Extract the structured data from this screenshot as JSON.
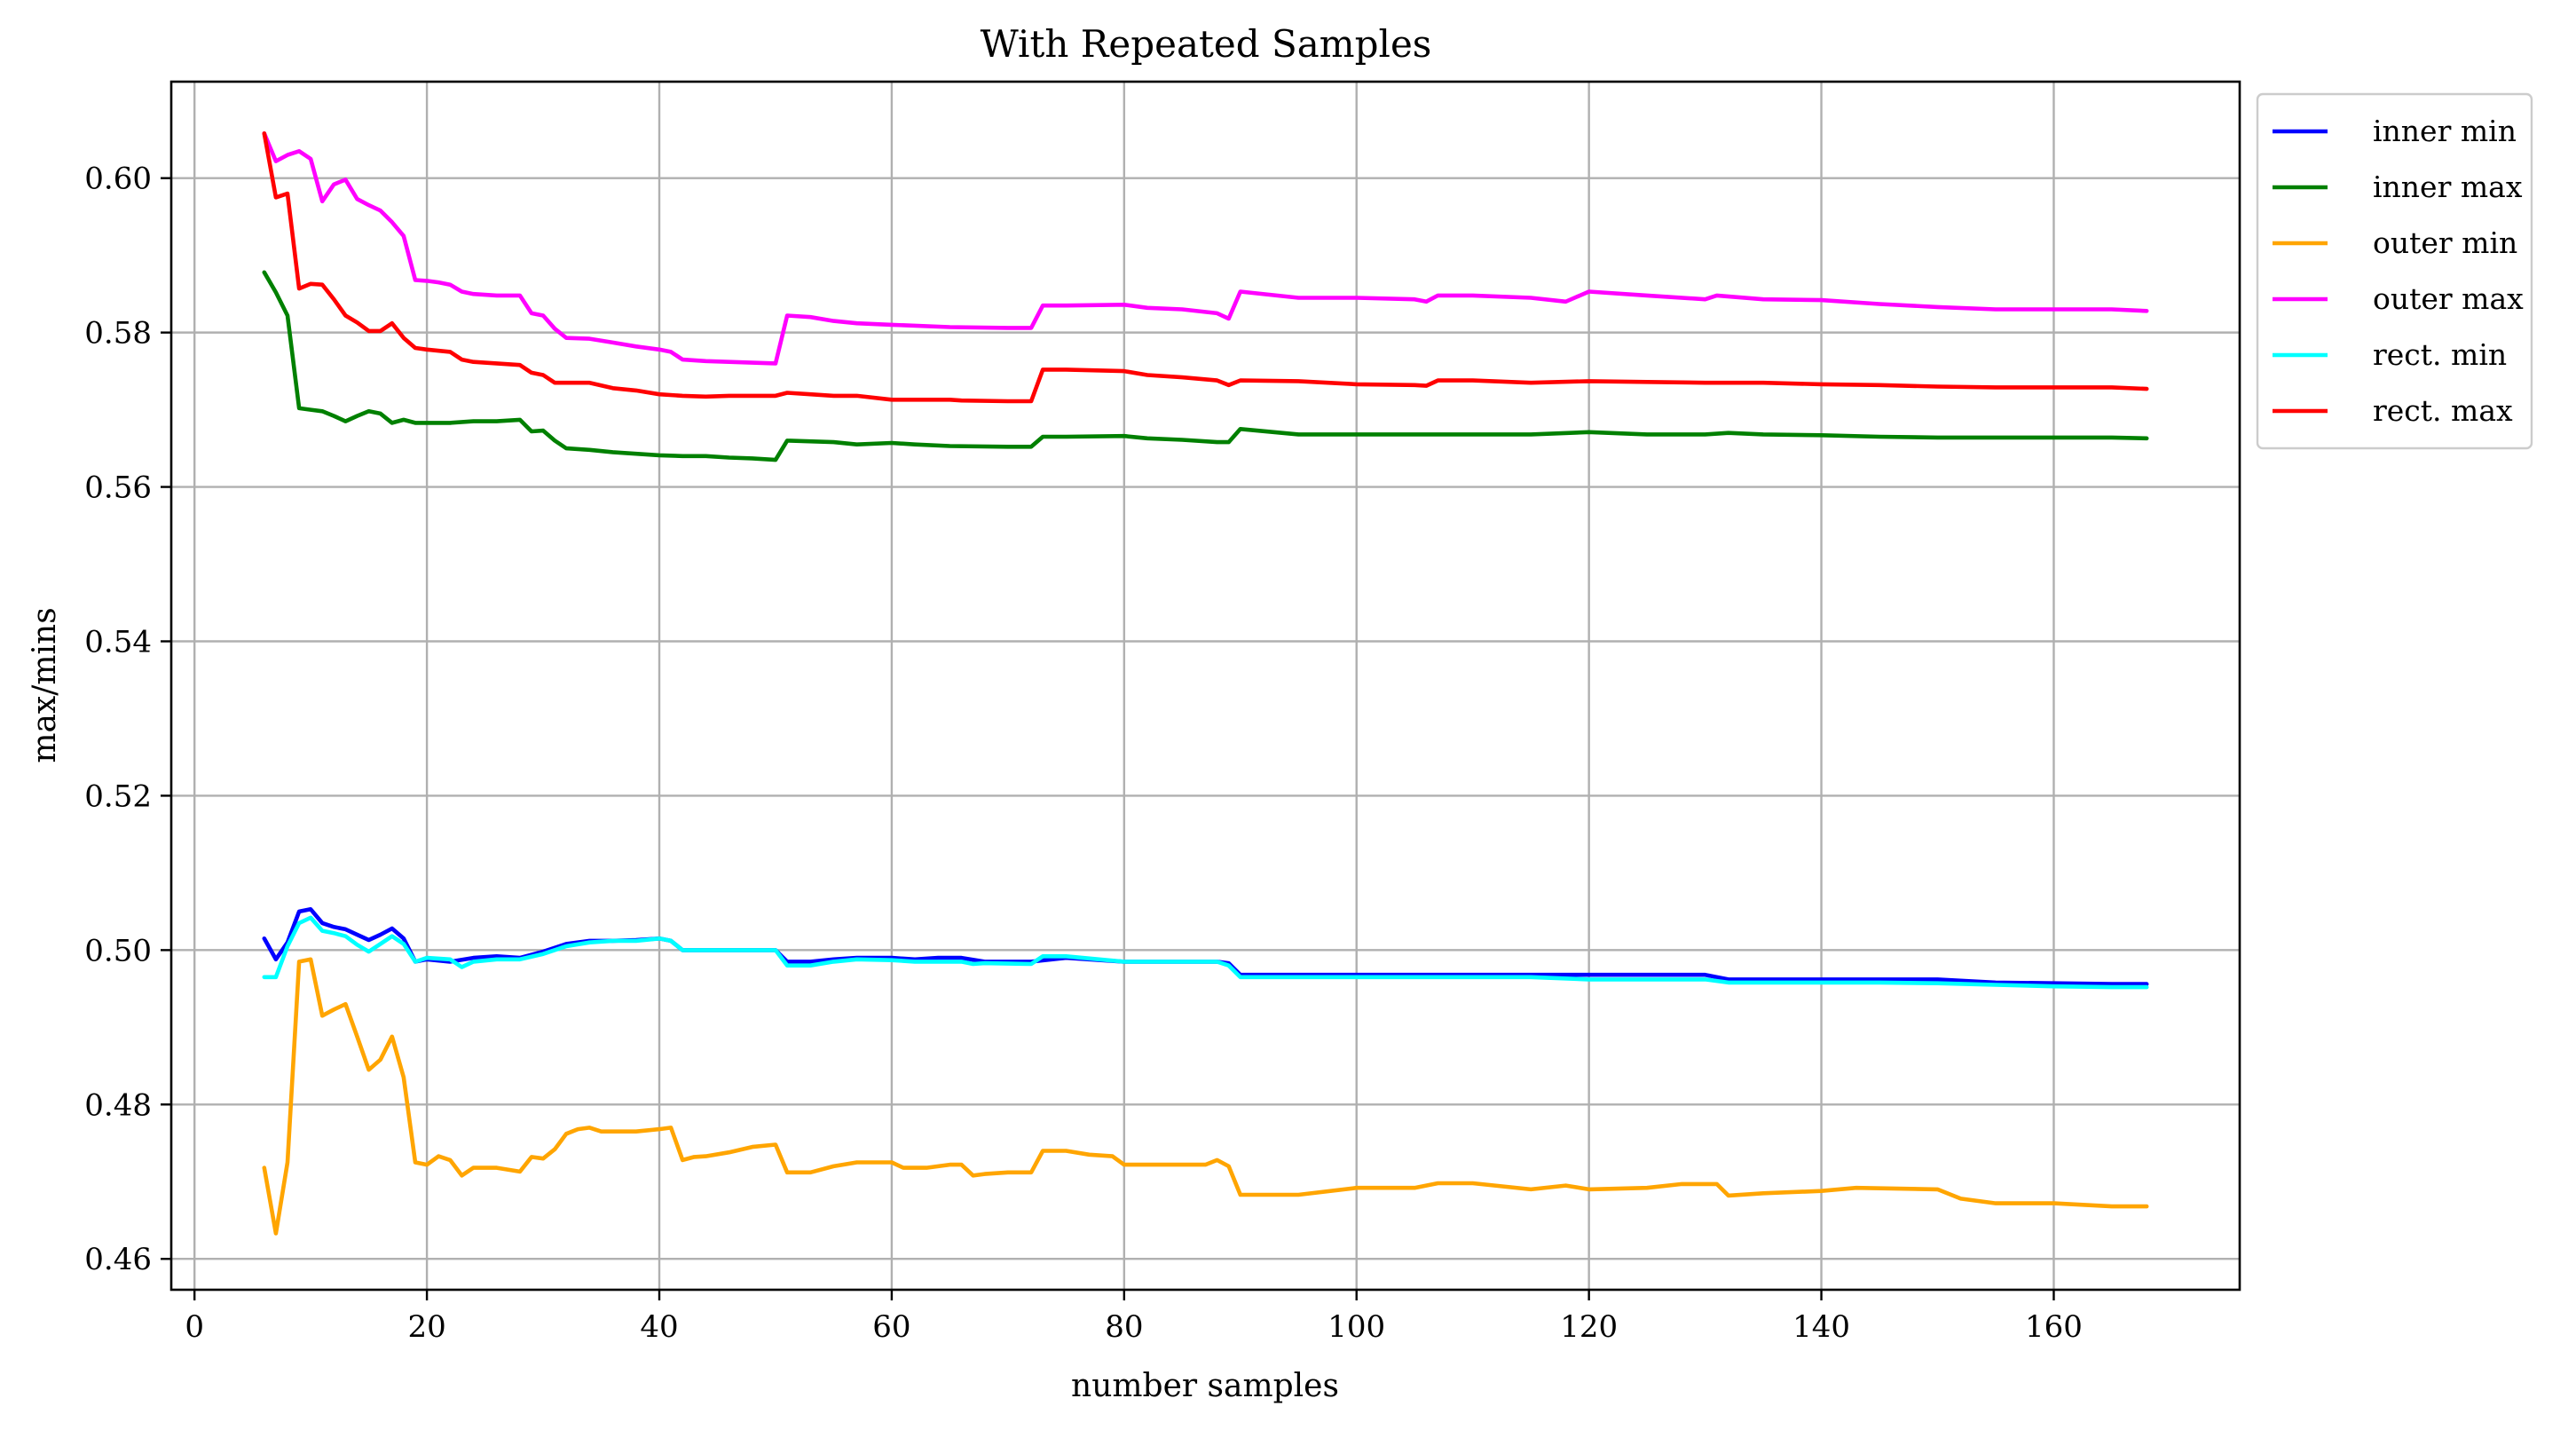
{
  "chart_data": {
    "type": "line",
    "title": "With Repeated Samples",
    "xlabel": "number samples",
    "ylabel": "max/mins",
    "xlim": [
      -2,
      176
    ],
    "ylim": [
      0.456,
      0.6125
    ],
    "xticks": [
      0,
      20,
      40,
      60,
      80,
      100,
      120,
      140,
      160
    ],
    "xtick_labels": [
      "0",
      "20",
      "40",
      "60",
      "80",
      "100",
      "120",
      "140",
      "160"
    ],
    "yticks": [
      0.46,
      0.48,
      0.5,
      0.52,
      0.54,
      0.56,
      0.58,
      0.6
    ],
    "ytick_labels": [
      "0.46",
      "0.48",
      "0.50",
      "0.52",
      "0.54",
      "0.56",
      "0.58",
      "0.60"
    ],
    "grid": true,
    "legend_position": "outside-top-right",
    "series": [
      {
        "name": "inner min",
        "color": "#0000ff",
        "x": [
          6,
          7,
          8,
          9,
          10,
          11,
          12,
          13,
          14,
          15,
          16,
          17,
          18,
          19,
          20,
          22,
          24,
          26,
          28,
          30,
          32,
          34,
          36,
          38,
          40,
          41,
          42,
          44,
          46,
          48,
          50,
          51,
          53,
          55,
          57,
          60,
          62,
          64,
          66,
          68,
          72,
          75,
          80,
          85,
          88,
          89,
          90,
          95,
          100,
          105,
          110,
          115,
          120,
          125,
          130,
          132,
          135,
          140,
          145,
          150,
          155,
          160,
          165,
          168
        ],
        "y": [
          0.5015,
          0.4988,
          0.501,
          0.505,
          0.5053,
          0.5035,
          0.503,
          0.5027,
          0.502,
          0.5013,
          0.502,
          0.5028,
          0.5015,
          0.4985,
          0.4988,
          0.4985,
          0.499,
          0.4992,
          0.499,
          0.4998,
          0.5008,
          0.5012,
          0.5012,
          0.5013,
          0.5015,
          0.5012,
          0.5,
          0.5,
          0.5,
          0.5,
          0.5,
          0.4985,
          0.4985,
          0.4988,
          0.499,
          0.499,
          0.4988,
          0.499,
          0.499,
          0.4985,
          0.4985,
          0.499,
          0.4985,
          0.4985,
          0.4985,
          0.4983,
          0.4968,
          0.4968,
          0.4968,
          0.4968,
          0.4968,
          0.4968,
          0.4968,
          0.4968,
          0.4968,
          0.4962,
          0.4962,
          0.4962,
          0.4962,
          0.4962,
          0.4958,
          0.4957,
          0.4956,
          0.4956
        ]
      },
      {
        "name": "inner max",
        "color": "#008000",
        "x": [
          6,
          7,
          8,
          9,
          10,
          11,
          12,
          13,
          14,
          15,
          16,
          17,
          18,
          19,
          20,
          22,
          24,
          26,
          28,
          29,
          30,
          31,
          32,
          34,
          36,
          38,
          40,
          42,
          44,
          46,
          48,
          50,
          51,
          55,
          57,
          60,
          62,
          65,
          70,
          72,
          73,
          75,
          80,
          82,
          85,
          88,
          89,
          90,
          95,
          100,
          105,
          110,
          115,
          120,
          125,
          130,
          132,
          135,
          140,
          145,
          150,
          155,
          160,
          165,
          168
        ],
        "y": [
          0.5878,
          0.5852,
          0.5822,
          0.5702,
          0.57,
          0.5698,
          0.5692,
          0.5685,
          0.5692,
          0.5698,
          0.5695,
          0.5683,
          0.5687,
          0.5683,
          0.5683,
          0.5683,
          0.5685,
          0.5685,
          0.5687,
          0.5672,
          0.5673,
          0.566,
          0.565,
          0.5648,
          0.5645,
          0.5643,
          0.5641,
          0.564,
          0.564,
          0.5638,
          0.5637,
          0.5635,
          0.566,
          0.5658,
          0.5655,
          0.5657,
          0.5655,
          0.5653,
          0.5652,
          0.5652,
          0.5665,
          0.5665,
          0.5666,
          0.5663,
          0.5661,
          0.5658,
          0.5658,
          0.5675,
          0.5668,
          0.5668,
          0.5668,
          0.5668,
          0.5668,
          0.5671,
          0.5668,
          0.5668,
          0.567,
          0.5668,
          0.5667,
          0.5665,
          0.5664,
          0.5664,
          0.5664,
          0.5664,
          0.5663
        ]
      },
      {
        "name": "outer min",
        "color": "#ffa500",
        "x": [
          6,
          7,
          8,
          9,
          10,
          11,
          12,
          13,
          14,
          15,
          16,
          17,
          18,
          19,
          20,
          21,
          22,
          23,
          24,
          26,
          28,
          29,
          30,
          31,
          32,
          33,
          34,
          35,
          36,
          38,
          40,
          41,
          42,
          43,
          44,
          46,
          48,
          50,
          51,
          53,
          55,
          57,
          60,
          61,
          63,
          65,
          66,
          67,
          68,
          70,
          72,
          73,
          75,
          77,
          79,
          80,
          85,
          87,
          88,
          89,
          90,
          95,
          100,
          105,
          107,
          110,
          115,
          118,
          120,
          125,
          128,
          131,
          132,
          135,
          140,
          143,
          150,
          152,
          155,
          160,
          165,
          168
        ],
        "y": [
          0.4718,
          0.4633,
          0.4725,
          0.4985,
          0.4988,
          0.4915,
          0.4923,
          0.493,
          0.4888,
          0.4845,
          0.4858,
          0.4888,
          0.4835,
          0.4725,
          0.4722,
          0.4733,
          0.4728,
          0.4708,
          0.4718,
          0.4718,
          0.4713,
          0.4732,
          0.473,
          0.4742,
          0.4762,
          0.4768,
          0.477,
          0.4765,
          0.4765,
          0.4765,
          0.4768,
          0.477,
          0.4728,
          0.4732,
          0.4733,
          0.4738,
          0.4745,
          0.4748,
          0.4712,
          0.4712,
          0.472,
          0.4725,
          0.4725,
          0.4718,
          0.4718,
          0.4722,
          0.4722,
          0.4708,
          0.471,
          0.4712,
          0.4712,
          0.474,
          0.474,
          0.4735,
          0.4733,
          0.4722,
          0.4722,
          0.4722,
          0.4728,
          0.472,
          0.4683,
          0.4683,
          0.4692,
          0.4692,
          0.4698,
          0.4698,
          0.469,
          0.4695,
          0.469,
          0.4692,
          0.4697,
          0.4697,
          0.4682,
          0.4685,
          0.4688,
          0.4692,
          0.469,
          0.4678,
          0.4672,
          0.4672,
          0.4668,
          0.4668
        ]
      },
      {
        "name": "outer max",
        "color": "#ff00ff",
        "x": [
          6,
          7,
          8,
          9,
          10,
          11,
          12,
          13,
          14,
          15,
          16,
          17,
          18,
          19,
          20,
          21,
          22,
          23,
          24,
          26,
          28,
          29,
          30,
          31,
          32,
          34,
          36,
          38,
          40,
          41,
          42,
          44,
          46,
          48,
          50,
          51,
          53,
          55,
          57,
          60,
          65,
          70,
          72,
          73,
          75,
          80,
          82,
          85,
          88,
          89,
          90,
          95,
          100,
          105,
          106,
          107,
          110,
          115,
          118,
          120,
          125,
          130,
          131,
          135,
          140,
          145,
          150,
          155,
          160,
          165,
          168
        ],
        "y": [
          0.6058,
          0.6022,
          0.603,
          0.6035,
          0.6025,
          0.597,
          0.5992,
          0.5998,
          0.5973,
          0.5965,
          0.5958,
          0.5943,
          0.5925,
          0.5868,
          0.5867,
          0.5865,
          0.5862,
          0.5853,
          0.585,
          0.5848,
          0.5848,
          0.5825,
          0.5822,
          0.5805,
          0.5793,
          0.5792,
          0.5787,
          0.5782,
          0.5778,
          0.5775,
          0.5765,
          0.5763,
          0.5762,
          0.5761,
          0.576,
          0.5822,
          0.582,
          0.5815,
          0.5812,
          0.581,
          0.5807,
          0.5806,
          0.5806,
          0.5835,
          0.5835,
          0.5836,
          0.5832,
          0.583,
          0.5825,
          0.5818,
          0.5853,
          0.5845,
          0.5845,
          0.5843,
          0.584,
          0.5848,
          0.5848,
          0.5845,
          0.584,
          0.5853,
          0.5848,
          0.5843,
          0.5848,
          0.5843,
          0.5842,
          0.5837,
          0.5833,
          0.583,
          0.583,
          0.583,
          0.5828
        ]
      },
      {
        "name": "rect. min",
        "color": "#00ffff",
        "x": [
          6,
          7,
          8,
          9,
          10,
          11,
          12,
          13,
          14,
          15,
          16,
          17,
          18,
          19,
          20,
          22,
          23,
          24,
          26,
          28,
          30,
          32,
          34,
          36,
          38,
          40,
          41,
          42,
          44,
          46,
          48,
          50,
          51,
          53,
          55,
          57,
          60,
          62,
          64,
          66,
          67,
          68,
          72,
          73,
          75,
          80,
          85,
          88,
          89,
          90,
          95,
          100,
          105,
          110,
          115,
          120,
          125,
          130,
          132,
          135,
          140,
          145,
          150,
          155,
          160,
          165,
          168
        ],
        "y": [
          0.4965,
          0.4965,
          0.5005,
          0.5035,
          0.5042,
          0.5025,
          0.5022,
          0.5018,
          0.5007,
          0.4998,
          0.5008,
          0.5018,
          0.5008,
          0.4985,
          0.499,
          0.4988,
          0.4978,
          0.4985,
          0.4988,
          0.4988,
          0.4995,
          0.5005,
          0.501,
          0.5012,
          0.5012,
          0.5015,
          0.5012,
          0.5,
          0.5,
          0.5,
          0.5,
          0.5,
          0.498,
          0.498,
          0.4985,
          0.4988,
          0.4987,
          0.4985,
          0.4985,
          0.4985,
          0.4982,
          0.4983,
          0.4982,
          0.4992,
          0.4992,
          0.4985,
          0.4985,
          0.4985,
          0.498,
          0.4965,
          0.4965,
          0.4965,
          0.4965,
          0.4965,
          0.4965,
          0.4962,
          0.4962,
          0.4962,
          0.4958,
          0.4958,
          0.4958,
          0.4958,
          0.4957,
          0.4955,
          0.4953,
          0.4952,
          0.4952
        ]
      },
      {
        "name": "rect. max",
        "color": "#ff0000",
        "x": [
          6,
          7,
          8,
          9,
          10,
          11,
          12,
          13,
          14,
          15,
          16,
          17,
          18,
          19,
          20,
          22,
          23,
          24,
          26,
          28,
          29,
          30,
          31,
          32,
          34,
          36,
          38,
          40,
          42,
          44,
          46,
          48,
          50,
          51,
          53,
          55,
          57,
          60,
          65,
          66,
          70,
          72,
          73,
          75,
          80,
          82,
          85,
          88,
          89,
          90,
          95,
          100,
          105,
          106,
          107,
          110,
          115,
          120,
          125,
          130,
          135,
          140,
          145,
          150,
          155,
          160,
          165,
          168
        ],
        "y": [
          0.6058,
          0.5975,
          0.598,
          0.5857,
          0.5863,
          0.5862,
          0.5843,
          0.5822,
          0.5813,
          0.5802,
          0.5802,
          0.5812,
          0.5793,
          0.578,
          0.5778,
          0.5775,
          0.5765,
          0.5762,
          0.576,
          0.5758,
          0.5748,
          0.5745,
          0.5735,
          0.5735,
          0.5735,
          0.5728,
          0.5725,
          0.572,
          0.5718,
          0.5717,
          0.5718,
          0.5718,
          0.5718,
          0.5722,
          0.572,
          0.5718,
          0.5718,
          0.5713,
          0.5713,
          0.5712,
          0.5711,
          0.5711,
          0.5752,
          0.5752,
          0.575,
          0.5745,
          0.5742,
          0.5738,
          0.5732,
          0.5738,
          0.5737,
          0.5733,
          0.5732,
          0.5731,
          0.5738,
          0.5738,
          0.5735,
          0.5737,
          0.5736,
          0.5735,
          0.5735,
          0.5733,
          0.5732,
          0.573,
          0.5729,
          0.5729,
          0.5729,
          0.5727
        ]
      }
    ]
  }
}
